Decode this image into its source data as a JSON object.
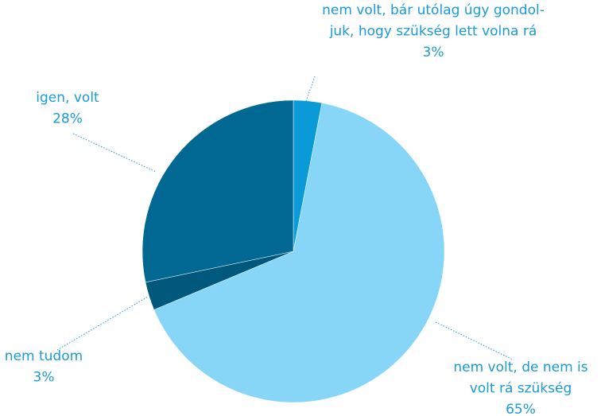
{
  "chart_data": {
    "type": "pie",
    "categories": [
      [
        "nem volt, bár utólag úgy gondol-",
        "juk, hogy szükség lett volna rá"
      ],
      [
        "nem volt, de nem is",
        "volt rá szükség"
      ],
      [
        "nem tudom"
      ],
      [
        "igen, volt"
      ]
    ],
    "values": [
      3,
      65,
      3,
      28
    ],
    "value_labels": [
      "3%",
      "65%",
      "3%",
      "28%"
    ],
    "colors": [
      "#0a9ad8",
      "#87d5f7",
      "#00587c",
      "#006892"
    ]
  }
}
